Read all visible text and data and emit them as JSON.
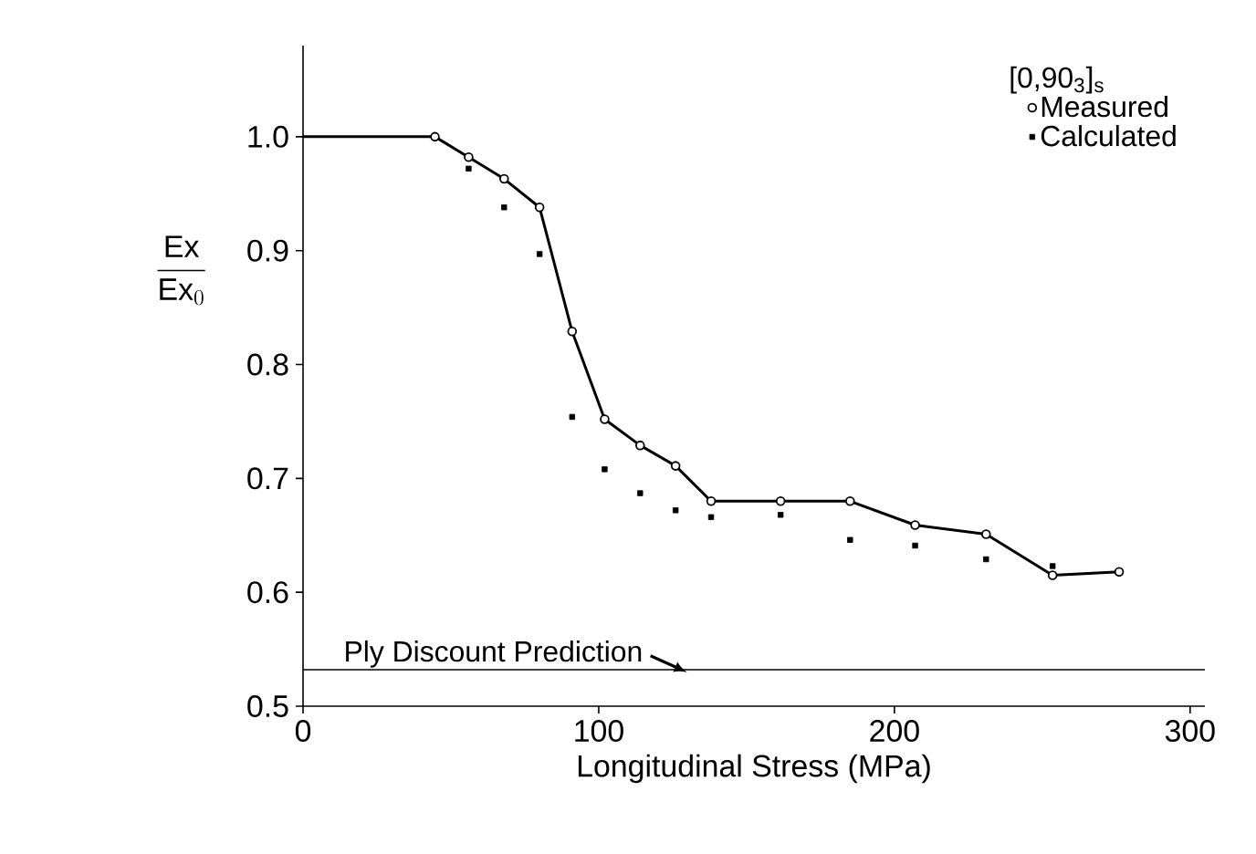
{
  "chart_data": {
    "type": "scatter",
    "xlabel": "Longitudinal Stress (MPa)",
    "ylabel": "\\dfrac{\\text{Ex}}{\\text{Ex}_{0}}",
    "legend_title": "[0,90$_{3}$]$_{s}$",
    "legend": "top right",
    "xlim": [
      0,
      305
    ],
    "ylim": [
      0.5,
      1.08
    ],
    "xticks": [
      0,
      100,
      200,
      300
    ],
    "yticks": [
      {
        "value": 0.5,
        "label": "0.5"
      },
      {
        "value": 0.6,
        "label": "0.6"
      },
      {
        "value": 0.7,
        "label": "0.7"
      },
      {
        "value": 0.8,
        "label": "0.8"
      },
      {
        "value": 0.9,
        "label": "0.9"
      },
      {
        "value": 1.0,
        "label": "1.0"
      }
    ],
    "grid": false,
    "series": [
      {
        "type": "line",
        "color": "#000000",
        "marker": "none",
        "line_style": "solid",
        "x": [
          0,
          44.6,
          56,
          68,
          80,
          91,
          102,
          114,
          126,
          138,
          161.5,
          185,
          207,
          231,
          253.5,
          276
        ],
        "values": [
          1.0,
          1.0,
          0.982,
          0.963,
          0.938,
          0.829,
          0.752,
          0.729,
          0.711,
          0.68,
          0.68,
          0.68,
          0.659,
          0.651,
          0.615,
          0.618
        ]
      },
      {
        "name": "Measured",
        "color": "#000000",
        "marker": "circle",
        "x": [
          44.6,
          56,
          68,
          80,
          91,
          102,
          114,
          126,
          138,
          161.5,
          185,
          207,
          231,
          253.5,
          276
        ],
        "values": [
          1.0,
          0.982,
          0.963,
          0.938,
          0.829,
          0.752,
          0.729,
          0.711,
          0.68,
          0.68,
          0.68,
          0.659,
          0.651,
          0.615,
          0.618
        ]
      },
      {
        "name": "Calculated",
        "color": "#000000",
        "marker": "square",
        "x": [
          56,
          68,
          80,
          91,
          102,
          114,
          126,
          138,
          161.5,
          185,
          207,
          231,
          253.5
        ],
        "values": [
          0.972,
          0.938,
          0.897,
          0.754,
          0.708,
          0.687,
          0.672,
          0.666,
          0.668,
          0.646,
          0.641,
          0.629,
          0.623
        ]
      }
    ],
    "ref_lines": [
      {
        "axis": "y",
        "value": 0.532,
        "label": "Ply Discount Prediction",
        "color": "#000000",
        "line_style": "solid"
      }
    ]
  }
}
